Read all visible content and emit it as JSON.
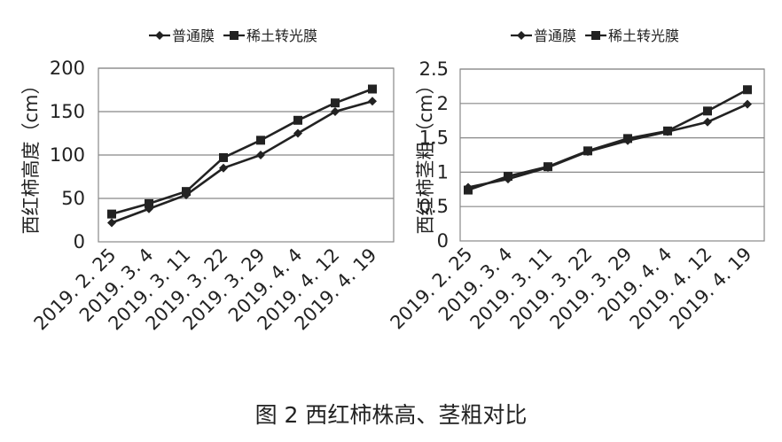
{
  "figure_caption": "图 2   西红柿株高、茎粗对比",
  "chart_data": [
    {
      "type": "line",
      "ylabel": "西红柿高度（cm）",
      "ylim": [
        0,
        200
      ],
      "yticks": [
        0,
        50,
        100,
        150,
        200
      ],
      "grid": "horizontal",
      "legend_position": "top",
      "categories": [
        "2019. 2. 25",
        "2019. 3. 4",
        "2019. 3. 11",
        "2019. 3. 22",
        "2019. 3. 29",
        "2019. 4. 4",
        "2019. 4. 12",
        "2019. 4. 19"
      ],
      "series": [
        {
          "name": "普通膜",
          "marker": "diamond",
          "color": "#222222",
          "values": [
            22,
            38,
            54,
            85,
            100,
            125,
            150,
            162
          ]
        },
        {
          "name": "稀土转光膜",
          "marker": "square",
          "color": "#222222",
          "values": [
            32,
            44,
            58,
            97,
            117,
            140,
            160,
            176
          ]
        }
      ]
    },
    {
      "type": "line",
      "ylabel": "西红柿茎粗（cm）",
      "ylim": [
        0,
        2.5
      ],
      "yticks": [
        "0",
        "0.5",
        "1",
        "1.5",
        "2",
        "2.5"
      ],
      "grid": "horizontal",
      "legend_position": "top",
      "categories": [
        "2019. 2. 25",
        "2019. 3. 4",
        "2019. 3. 11",
        "2019. 3. 22",
        "2019. 3. 29",
        "2019. 4. 4",
        "2019. 4. 12",
        "2019. 4. 19"
      ],
      "series": [
        {
          "name": "普通膜",
          "marker": "diamond",
          "color": "#222222",
          "values": [
            0.78,
            0.9,
            1.07,
            1.3,
            1.46,
            1.59,
            1.73,
            1.99
          ]
        },
        {
          "name": "稀土转光膜",
          "marker": "square",
          "color": "#222222",
          "values": [
            0.74,
            0.94,
            1.08,
            1.31,
            1.49,
            1.6,
            1.89,
            2.2
          ]
        }
      ]
    }
  ]
}
